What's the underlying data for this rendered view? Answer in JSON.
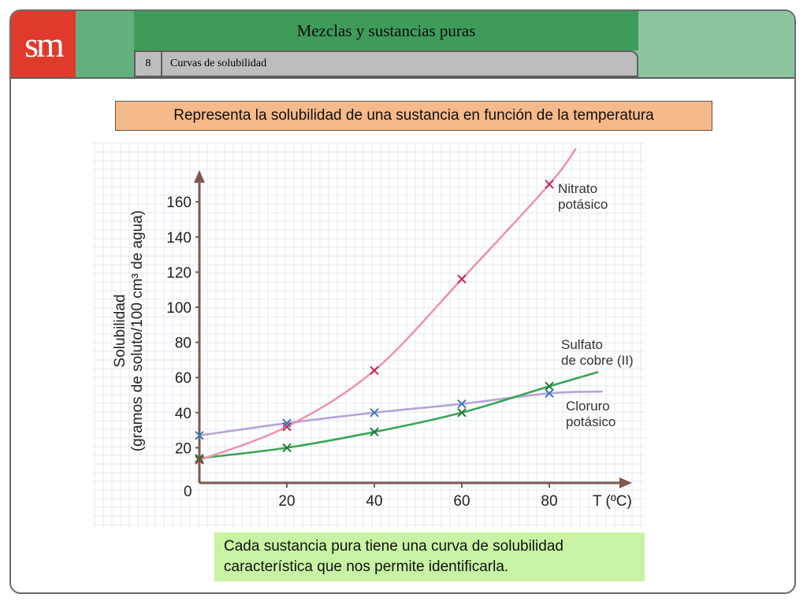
{
  "header": {
    "logo_text": "sm",
    "title": "Mezclas y sustancias puras",
    "section_number": "8",
    "section_title": "Curvas de solubilidad"
  },
  "banner_text": "Representa la solubilidad de una sustancia en función de la temperatura",
  "note": {
    "line1": "Cada sustancia pura tiene una curva de solubilidad",
    "line2": "característica que nos permite identificarla."
  },
  "colors": {
    "logo": "#e03a2c",
    "title_band": "#3f9b5a",
    "banner": "#f6b98a",
    "note": "#c9f3a4",
    "nitrato": "#ee94ad",
    "sulfato": "#3aa655",
    "cloruro": "#b8a4d6",
    "axis": "#7d5a50"
  },
  "chart_data": {
    "type": "line",
    "ylabel_line1": "Solubilidad",
    "ylabel_line2": "(gramos de soluto/100 cm³ de agua)",
    "xlabel": "T (ºC)",
    "origin_label": "0",
    "xlim": [
      0,
      100
    ],
    "ylim": [
      0,
      180
    ],
    "x_ticks": [
      20,
      40,
      60,
      80
    ],
    "y_ticks": [
      20,
      40,
      60,
      80,
      100,
      120,
      140,
      160
    ],
    "grid": true,
    "series": [
      {
        "name_line1": "Nitrato",
        "name_line2": "potásico",
        "color": "#ee94ad",
        "marker_color": "#c8284e",
        "points": [
          [
            0,
            13
          ],
          [
            20,
            32
          ],
          [
            40,
            64
          ],
          [
            60,
            116
          ],
          [
            80,
            170
          ]
        ],
        "curve": [
          [
            0,
            13
          ],
          [
            20,
            32
          ],
          [
            40,
            64
          ],
          [
            60,
            116
          ],
          [
            80,
            170
          ],
          [
            86,
            190
          ]
        ]
      },
      {
        "name_line1": "Sulfato",
        "name_line2": "de cobre (II)",
        "color": "#3aa655",
        "marker_color": "#1f7a38",
        "points": [
          [
            0,
            14
          ],
          [
            20,
            20
          ],
          [
            40,
            29
          ],
          [
            60,
            40
          ],
          [
            80,
            55
          ]
        ],
        "curve": [
          [
            0,
            14
          ],
          [
            20,
            20
          ],
          [
            40,
            29
          ],
          [
            60,
            40
          ],
          [
            80,
            55
          ],
          [
            91,
            63
          ]
        ]
      },
      {
        "name_line1": "Cloruro",
        "name_line2": "potásico",
        "color": "#b8a4d6",
        "marker_color": "#3d79b8",
        "points": [
          [
            0,
            27
          ],
          [
            20,
            34
          ],
          [
            40,
            40
          ],
          [
            60,
            45
          ],
          [
            80,
            51
          ]
        ],
        "curve": [
          [
            0,
            27
          ],
          [
            20,
            34
          ],
          [
            40,
            40
          ],
          [
            60,
            45
          ],
          [
            80,
            51
          ],
          [
            92,
            52
          ]
        ]
      }
    ]
  }
}
